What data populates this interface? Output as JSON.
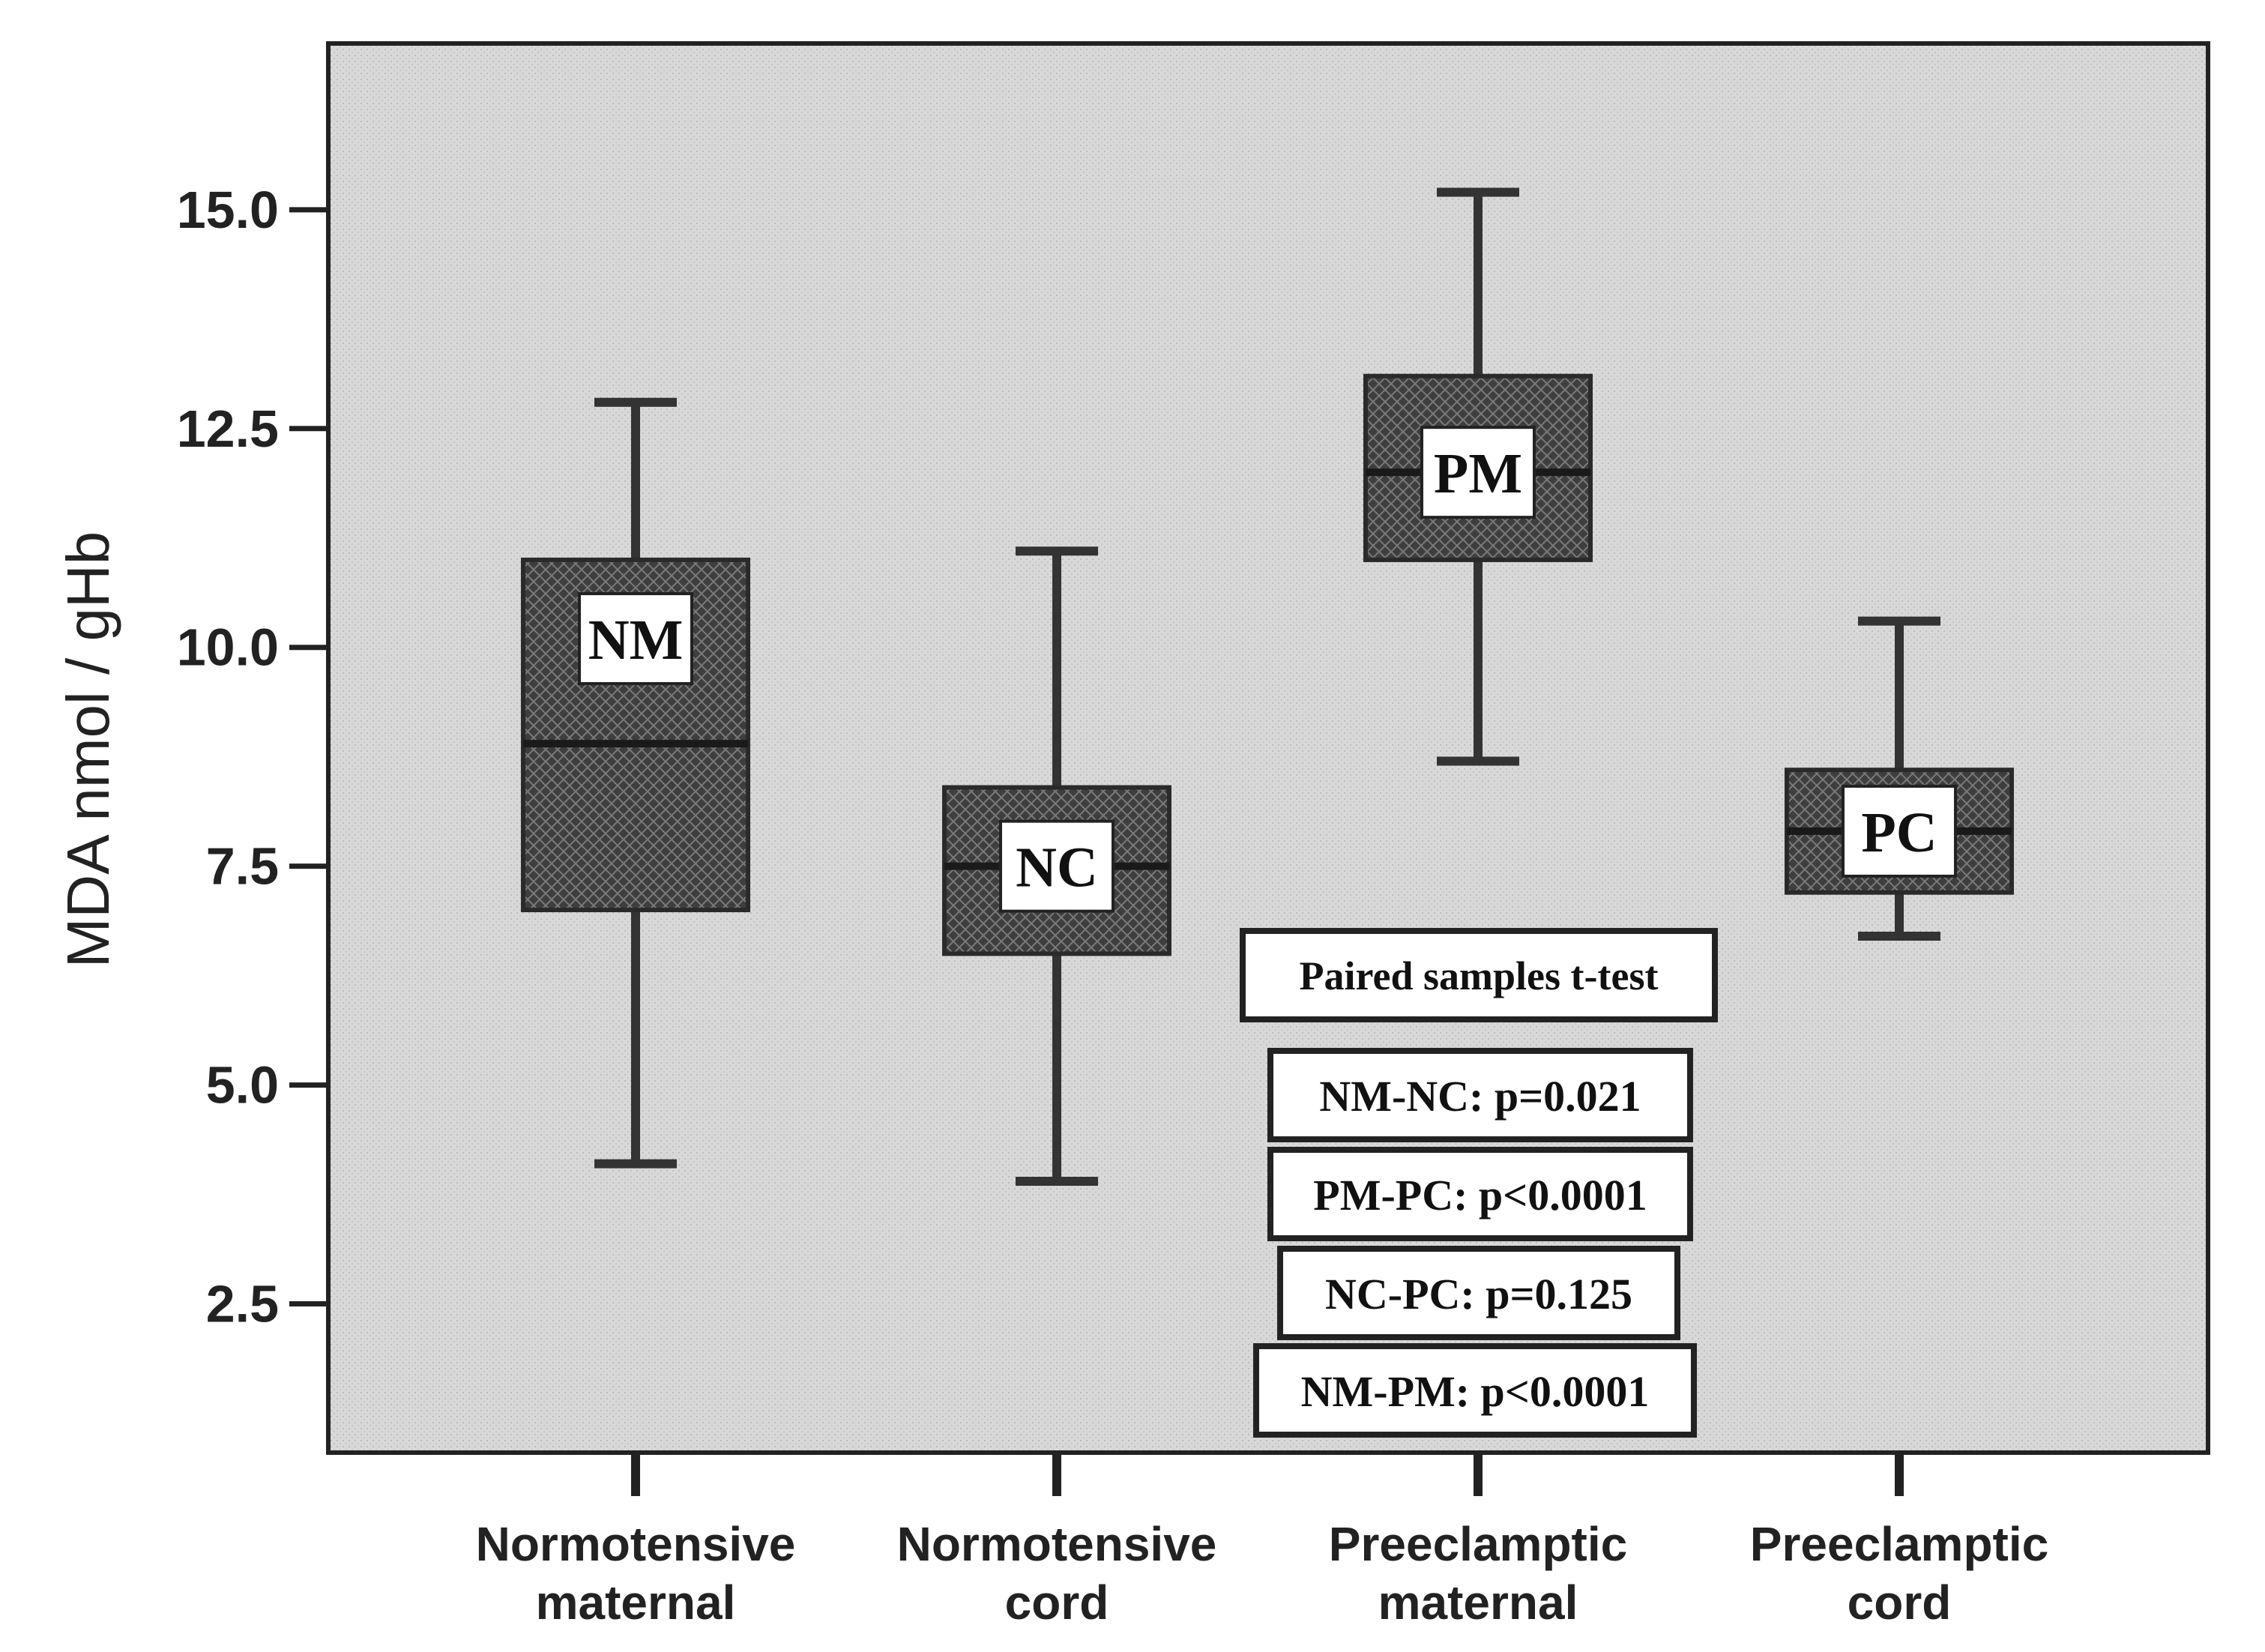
{
  "chart_data": {
    "type": "box",
    "ylabel": "MDA  nmol / gHb",
    "xlabel": "",
    "ylim": [
      0.8,
      16.9
    ],
    "yticks": [
      2.5,
      5.0,
      7.5,
      10.0,
      12.5,
      15.0
    ],
    "ytick_labels": [
      "2.5",
      "5.0",
      "7.5",
      "10.0",
      "12.5",
      "15.0"
    ],
    "grid": false,
    "categories": [
      {
        "line1": "Normotensive",
        "line2": "maternal"
      },
      {
        "line1": "Normotensive",
        "line2": "cord"
      },
      {
        "line1": "Preeclamptic",
        "line2": "maternal"
      },
      {
        "line1": "Preeclamptic",
        "line2": "cord"
      }
    ],
    "boxes": [
      {
        "label": "NM",
        "min": 4.1,
        "q1": 7.0,
        "median": 8.9,
        "q3": 11.0,
        "max": 12.8
      },
      {
        "label": "NC",
        "min": 3.9,
        "q1": 6.5,
        "median": 7.5,
        "q3": 8.4,
        "max": 11.1
      },
      {
        "label": "PM",
        "min": 8.7,
        "q1": 11.0,
        "median": 12.0,
        "q3": 13.1,
        "max": 15.2
      },
      {
        "label": "PC",
        "min": 6.7,
        "q1": 7.2,
        "median": 7.9,
        "q3": 8.6,
        "max": 10.3
      }
    ],
    "annotation": {
      "title": "Paired samples t-test",
      "lines": [
        "NM-NC: p=0.021",
        "PM-PC: p<0.0001",
        "NC-PC: p=0.125",
        "NM-PM: p<0.0001"
      ]
    },
    "colors": {
      "plot_bg": "#dcdcdc",
      "box_fill": "#454545",
      "frame": "#222222"
    }
  }
}
